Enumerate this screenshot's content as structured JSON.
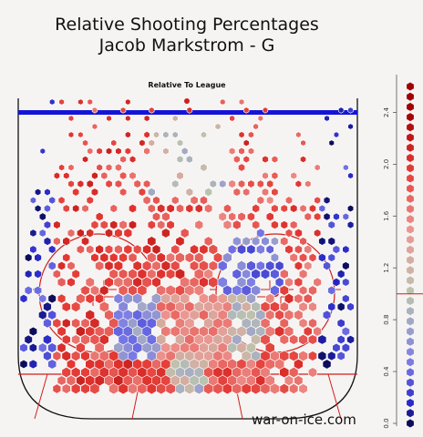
{
  "header": {
    "title_line1": "Relative Shooting Percentages",
    "title_line2": "Jacob Markstrom - G",
    "subtitle": "Relative To League"
  },
  "watermark": "war-on-ice.com",
  "colors": {
    "rink_line_blue": "#1414d8",
    "rink_line_red": "#d21e1e",
    "board": "#111111",
    "crease": "#a9cfd6",
    "neutral": "#bcc4b0",
    "high": "#e23a35",
    "low": "#3b3be0"
  },
  "chart_data": {
    "type": "heatmap",
    "title": "Relative Shooting Percentages",
    "subtitle": "Relative To League",
    "player": "Jacob Markstrom - G",
    "colorbar": {
      "ticks": [
        "0.0",
        "0.4",
        "0.8",
        "1.2",
        "1.6",
        "2.0",
        "2.4"
      ],
      "range": [
        0.0,
        2.6
      ],
      "reference_value": 1.0,
      "ylabel": "",
      "scale": "diverging: blue (below league) - grey (league average) - red (above league)"
    },
    "zones": [
      {
        "zone": "blue-line point area",
        "relative": 1.9
      },
      {
        "zone": "left high slot",
        "relative": 1.9
      },
      {
        "zone": "right high slot",
        "relative": 1.8
      },
      {
        "zone": "center point",
        "relative": 1.0
      },
      {
        "zone": "left circle",
        "relative": 1.9
      },
      {
        "zone": "right circle",
        "relative": 0.5
      },
      {
        "zone": "left slot low",
        "relative": 0.6
      },
      {
        "zone": "home plate slot",
        "relative": 1.5
      },
      {
        "zone": "crease area",
        "relative": 1.0
      },
      {
        "zone": "right low slot",
        "relative": 1.0
      },
      {
        "zone": "left boards / outside",
        "relative": 0.2
      },
      {
        "zone": "right boards / outside",
        "relative": 0.2
      }
    ]
  }
}
